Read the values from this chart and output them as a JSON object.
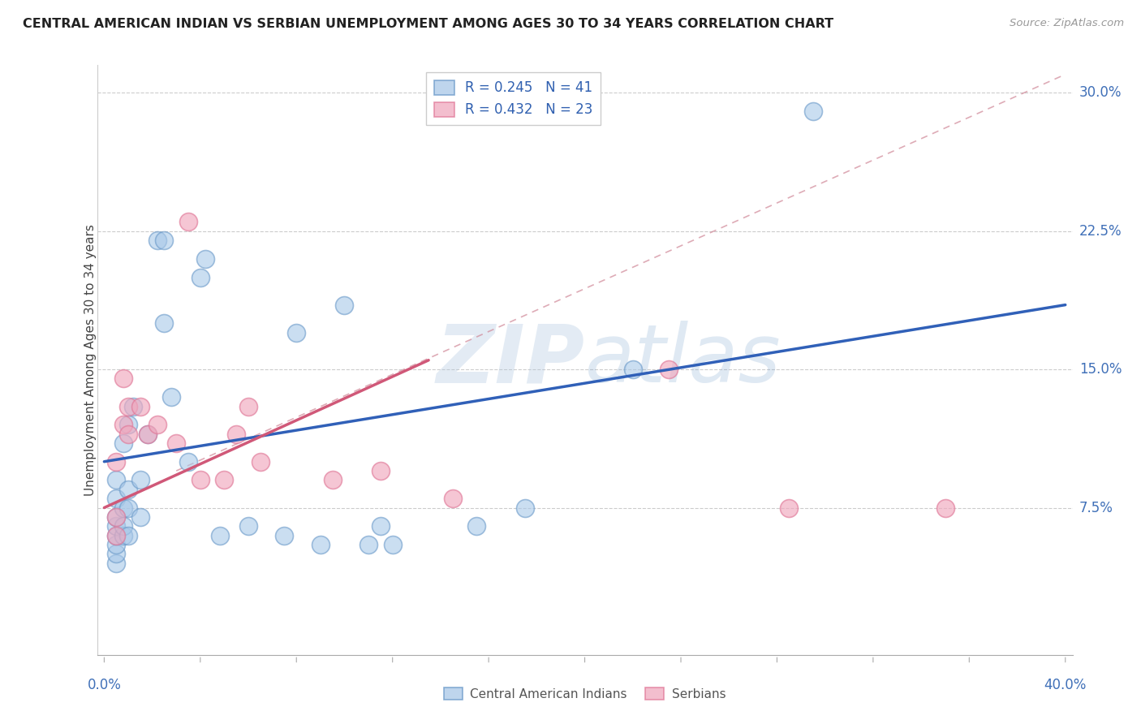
{
  "title": "CENTRAL AMERICAN INDIAN VS SERBIAN UNEMPLOYMENT AMONG AGES 30 TO 34 YEARS CORRELATION CHART",
  "source": "Source: ZipAtlas.com",
  "ylabel": "Unemployment Among Ages 30 to 34 years",
  "xlim": [
    0.0,
    0.4
  ],
  "ylim": [
    0.0,
    0.315
  ],
  "yticks": [
    0.075,
    0.15,
    0.225,
    0.3
  ],
  "ytick_labels": [
    "7.5%",
    "15.0%",
    "22.5%",
    "30.0%"
  ],
  "legend_r1": "R = 0.245",
  "legend_n1": "N = 41",
  "legend_r2": "R = 0.432",
  "legend_n2": "N = 23",
  "blue_color": "#a8c8e8",
  "pink_color": "#f0a8be",
  "blue_edge": "#6898c8",
  "pink_edge": "#e07898",
  "trend_blue": "#3060b8",
  "trend_pink": "#d05878",
  "trend_dash": "#d08898",
  "watermark_color": "#c8dff0",
  "cai_x": [
    0.005,
    0.005,
    0.005,
    0.005,
    0.005,
    0.005,
    0.005,
    0.005,
    0.008,
    0.008,
    0.008,
    0.008,
    0.01,
    0.01,
    0.01,
    0.01,
    0.012,
    0.015,
    0.015,
    0.018,
    0.022,
    0.025,
    0.025,
    0.028,
    0.035,
    0.04,
    0.042,
    0.048,
    0.06,
    0.075,
    0.08,
    0.09,
    0.1,
    0.11,
    0.115,
    0.12,
    0.155,
    0.175,
    0.195,
    0.22,
    0.295
  ],
  "cai_y": [
    0.045,
    0.05,
    0.055,
    0.06,
    0.065,
    0.07,
    0.08,
    0.09,
    0.06,
    0.065,
    0.075,
    0.11,
    0.06,
    0.075,
    0.085,
    0.12,
    0.13,
    0.07,
    0.09,
    0.115,
    0.22,
    0.22,
    0.175,
    0.135,
    0.1,
    0.2,
    0.21,
    0.06,
    0.065,
    0.06,
    0.17,
    0.055,
    0.185,
    0.055,
    0.065,
    0.055,
    0.065,
    0.075,
    0.295,
    0.15,
    0.29
  ],
  "srb_x": [
    0.005,
    0.005,
    0.005,
    0.008,
    0.008,
    0.01,
    0.01,
    0.015,
    0.018,
    0.022,
    0.03,
    0.035,
    0.04,
    0.05,
    0.055,
    0.06,
    0.065,
    0.095,
    0.115,
    0.145,
    0.235,
    0.285,
    0.35
  ],
  "srb_y": [
    0.06,
    0.07,
    0.1,
    0.12,
    0.145,
    0.115,
    0.13,
    0.13,
    0.115,
    0.12,
    0.11,
    0.23,
    0.09,
    0.09,
    0.115,
    0.13,
    0.1,
    0.09,
    0.095,
    0.08,
    0.15,
    0.075,
    0.075
  ],
  "blue_trend_x": [
    0.0,
    0.4
  ],
  "blue_trend_y": [
    0.1,
    0.185
  ],
  "pink_trend_x": [
    0.0,
    0.135
  ],
  "pink_trend_y": [
    0.075,
    0.155
  ],
  "dash_trend_x": [
    0.03,
    0.4
  ],
  "dash_trend_y": [
    0.095,
    0.31
  ]
}
